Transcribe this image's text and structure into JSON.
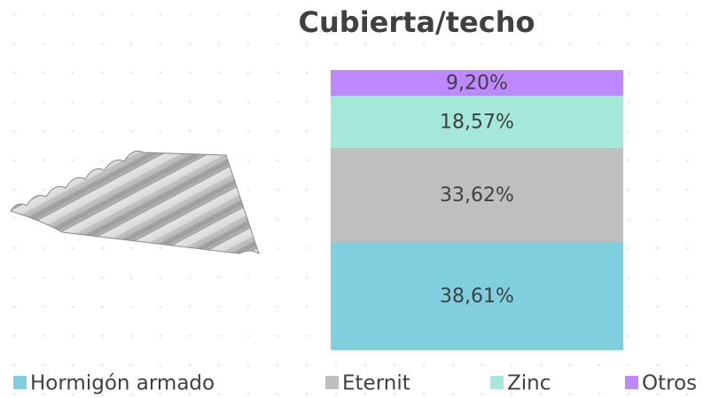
{
  "chart_data": {
    "type": "stacked_bar",
    "title": "Cubierta/techo",
    "ylim": [
      0,
      100
    ],
    "series": [
      {
        "name": "Hormigón armado",
        "color": "#7fcfdf",
        "values": [
          38.61
        ],
        "value_labels": [
          "38,61%"
        ]
      },
      {
        "name": "Eternit",
        "color": "#bfbfbf",
        "values": [
          33.62
        ],
        "value_labels": [
          "33,62%"
        ]
      },
      {
        "name": "Zinc",
        "color": "#a3e8d8",
        "values": [
          18.57
        ],
        "value_labels": [
          "18,57%"
        ]
      },
      {
        "name": "Otros",
        "color": "#bf88ff",
        "values": [
          9.2
        ],
        "value_labels": [
          "9,20%"
        ]
      }
    ]
  }
}
